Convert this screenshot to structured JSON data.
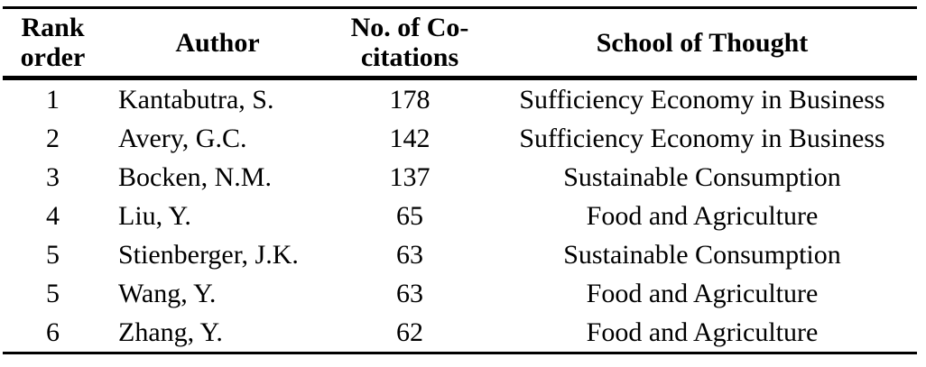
{
  "table": {
    "headers": {
      "rank": "Rank\norder",
      "author": "Author",
      "cocitations": "No. of Co-\ncitations",
      "school": "School of Thought"
    },
    "rows": [
      {
        "rank": "1",
        "author": "Kantabutra, S.",
        "cocitations": "178",
        "school": "Sufficiency Economy in Business"
      },
      {
        "rank": "2",
        "author": "Avery, G.C.",
        "cocitations": "142",
        "school": "Sufficiency Economy in Business"
      },
      {
        "rank": "3",
        "author": "Bocken, N.M.",
        "cocitations": "137",
        "school": "Sustainable Consumption"
      },
      {
        "rank": "4",
        "author": "Liu, Y.",
        "cocitations": "65",
        "school": "Food and Agriculture"
      },
      {
        "rank": "5",
        "author": "Stienberger, J.K.",
        "cocitations": "63",
        "school": "Sustainable Consumption"
      },
      {
        "rank": "5",
        "author": "Wang, Y.",
        "cocitations": "63",
        "school": "Food and Agriculture"
      },
      {
        "rank": "6",
        "author": "Zhang, Y.",
        "cocitations": "62",
        "school": "Food and Agriculture"
      }
    ],
    "colors": {
      "text": "#000000",
      "background": "#ffffff",
      "rule": "#000000"
    }
  }
}
